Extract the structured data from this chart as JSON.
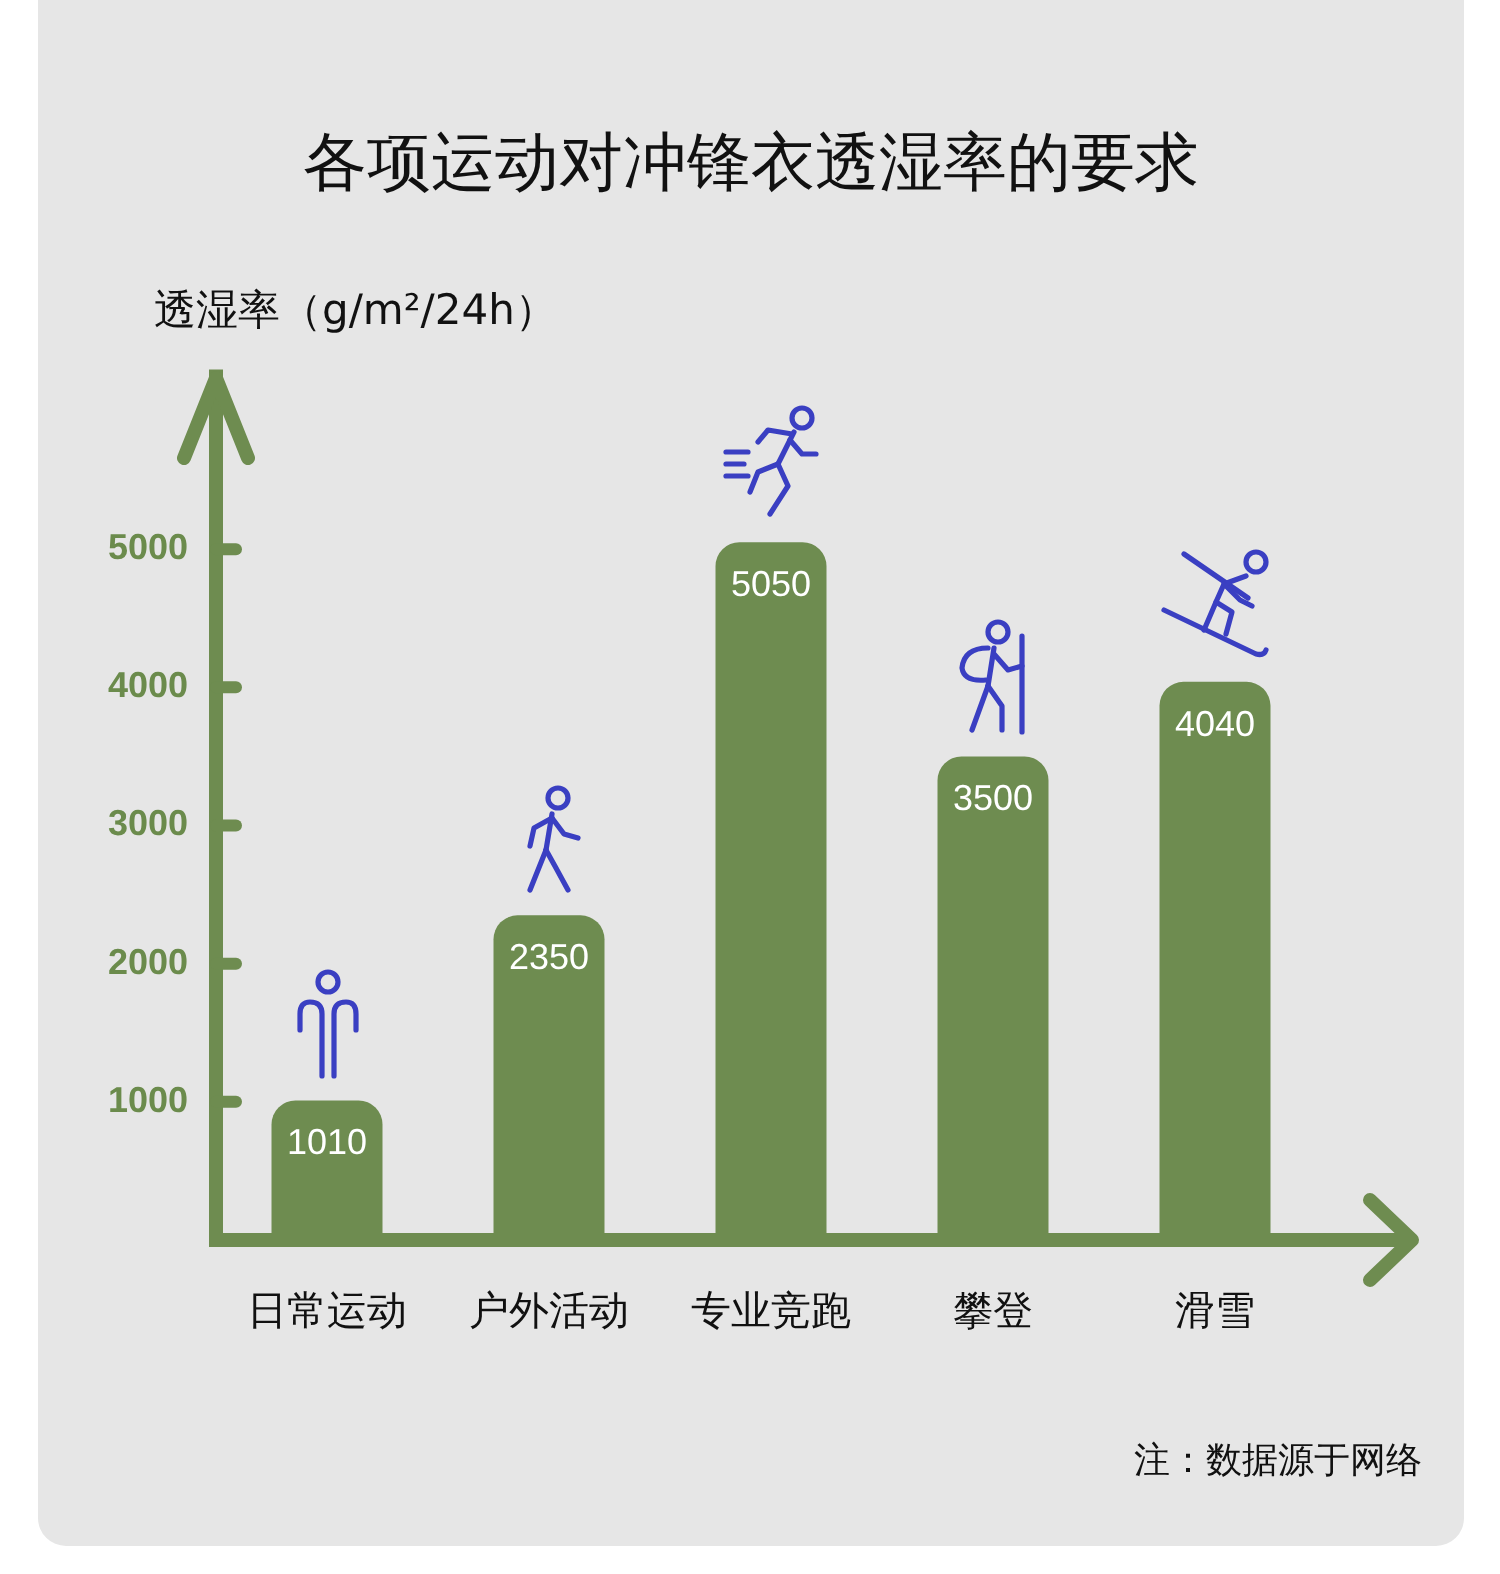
{
  "chart_data": {
    "type": "bar",
    "title": "各项运动对冲锋衣透湿率的要求",
    "ylabel": "透湿率（g/m²/24h）",
    "categories": [
      "日常运动",
      "户外活动",
      "专业竞跑",
      "攀登",
      "滑雪"
    ],
    "values": [
      1010,
      2350,
      5050,
      3500,
      4040
    ],
    "color": "#6e8c50",
    "ylim": [
      0,
      6300
    ],
    "yticks": [
      1000,
      2000,
      3000,
      4000,
      5000
    ],
    "data_labels": true,
    "annotations": [
      "注：数据源于网络"
    ]
  }
}
